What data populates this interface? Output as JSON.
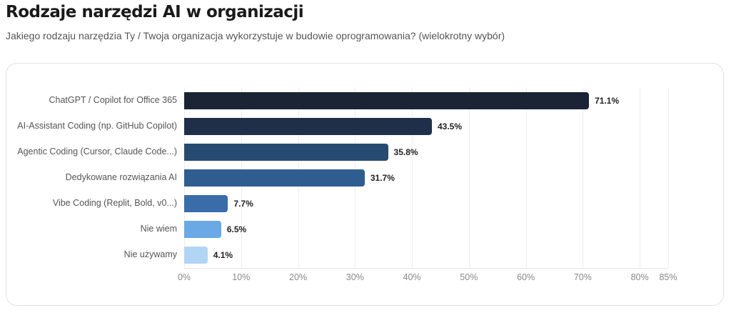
{
  "header": {
    "title": "Rodzaje narzędzi AI w organizacji",
    "subtitle": "Jakiego rodzaju narzędzia Ty / Twoja organizacja wykorzystuje w budowie oprogramowania? (wielokrotny wybór)"
  },
  "chart_data": {
    "type": "bar",
    "orientation": "horizontal",
    "categories": [
      "ChatGPT / Copilot for Office 365",
      "AI-Assistant Coding (np. GitHub Copilot)",
      "Agentic Coding (Cursor, Claude Code...)",
      "Dedykowane rozwiązania AI",
      "Vibe Coding (Replit, Bold, v0...)",
      "Nie wiem",
      "Nie używamy"
    ],
    "values": [
      71.1,
      43.5,
      35.8,
      31.7,
      7.7,
      6.5,
      4.1
    ],
    "value_labels": [
      "71.1%",
      "43.5%",
      "35.8%",
      "31.7%",
      "7.7%",
      "6.5%",
      "4.1%"
    ],
    "colors": [
      "#1b2434",
      "#1f2f49",
      "#264a70",
      "#2f5d8f",
      "#3a6ca9",
      "#6aa9e5",
      "#b2d5f5"
    ],
    "xlim": [
      0,
      85
    ],
    "ticks": [
      0,
      10,
      20,
      30,
      40,
      50,
      60,
      70,
      80,
      85
    ],
    "tick_labels": [
      "0%",
      "10%",
      "20%",
      "30%",
      "40%",
      "50%",
      "60%",
      "70%",
      "80%",
      "85%"
    ],
    "grid": true
  }
}
